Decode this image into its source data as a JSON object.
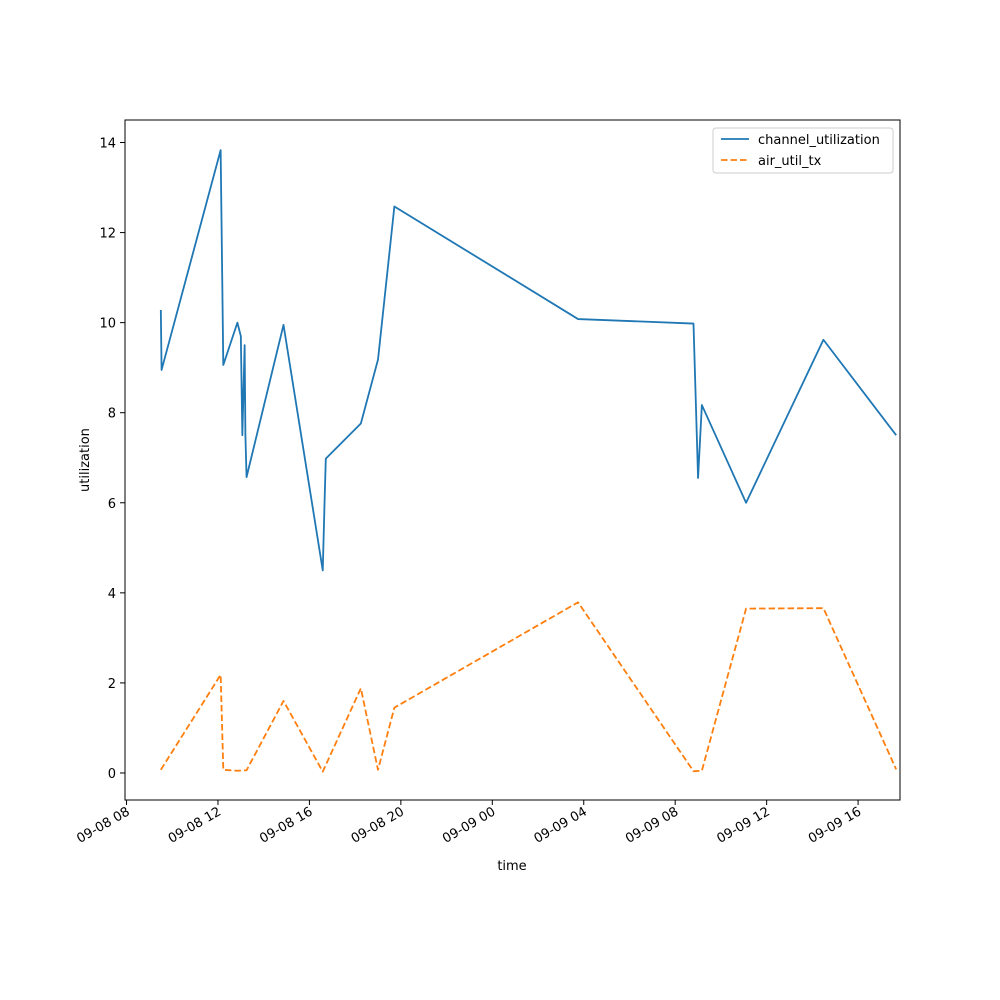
{
  "chart_data": {
    "type": "line",
    "title": "",
    "xlabel": "time",
    "ylabel": "utilization",
    "x_tick_labels": [
      "09-08 08",
      "09-08 12",
      "09-08 16",
      "09-08 20",
      "09-09 00",
      "09-09 04",
      "09-09 08",
      "09-09 12",
      "09-09 16"
    ],
    "x_ticks": [
      "2024-09-08T08:00",
      "2024-09-08T12:00",
      "2024-09-08T16:00",
      "2024-09-08T20:00",
      "2024-09-09T00:00",
      "2024-09-09T04:00",
      "2024-09-09T08:00",
      "2024-09-09T12:00",
      "2024-09-09T16:00"
    ],
    "xlim": [
      "2024-09-08T07:56",
      "2024-09-09T17:50"
    ],
    "y_ticks": [
      0,
      2,
      4,
      6,
      8,
      10,
      12,
      14
    ],
    "ylim": [
      -0.6,
      14.5
    ],
    "grid": false,
    "legend_position": "top-right",
    "series": [
      {
        "name": "channel_utilization",
        "color": "#1f77b4",
        "dash": "solid",
        "points": [
          [
            "2024-09-08T09:30",
            10.28
          ],
          [
            "2024-09-08T09:32",
            8.95
          ],
          [
            "2024-09-08T12:07",
            13.83
          ],
          [
            "2024-09-08T12:14",
            9.06
          ],
          [
            "2024-09-08T12:51",
            10.0
          ],
          [
            "2024-09-08T13:00",
            9.7
          ],
          [
            "2024-09-08T13:04",
            7.5
          ],
          [
            "2024-09-08T13:10",
            9.5
          ],
          [
            "2024-09-08T13:12",
            7.5
          ],
          [
            "2024-09-08T13:15",
            6.57
          ],
          [
            "2024-09-08T14:52",
            9.95
          ],
          [
            "2024-09-08T16:35",
            4.5
          ],
          [
            "2024-09-08T16:40",
            6.1
          ],
          [
            "2024-09-08T16:43",
            6.98
          ],
          [
            "2024-09-08T18:15",
            7.76
          ],
          [
            "2024-09-08T19:00",
            9.18
          ],
          [
            "2024-09-08T19:43",
            12.58
          ],
          [
            "2024-09-09T03:45",
            10.08
          ],
          [
            "2024-09-09T08:48",
            9.98
          ],
          [
            "2024-09-09T09:00",
            6.55
          ],
          [
            "2024-09-09T09:10",
            8.17
          ],
          [
            "2024-09-09T11:06",
            6.0
          ],
          [
            "2024-09-09T14:29",
            9.62
          ],
          [
            "2024-09-09T17:40",
            7.5
          ]
        ]
      },
      {
        "name": "air_util_tx",
        "color": "#ff7f0e",
        "dash": "dashed",
        "points": [
          [
            "2024-09-08T09:30",
            0.07
          ],
          [
            "2024-09-08T12:07",
            2.18
          ],
          [
            "2024-09-08T12:14",
            0.07
          ],
          [
            "2024-09-08T12:51",
            0.05
          ],
          [
            "2024-09-08T13:15",
            0.06
          ],
          [
            "2024-09-08T14:52",
            1.6
          ],
          [
            "2024-09-08T16:35",
            0.03
          ],
          [
            "2024-09-08T18:15",
            1.88
          ],
          [
            "2024-09-08T19:00",
            0.07
          ],
          [
            "2024-09-08T19:43",
            1.45
          ],
          [
            "2024-09-09T03:45",
            3.79
          ],
          [
            "2024-09-09T08:48",
            0.04
          ],
          [
            "2024-09-09T09:10",
            0.05
          ],
          [
            "2024-09-09T11:06",
            3.65
          ],
          [
            "2024-09-09T14:29",
            3.66
          ],
          [
            "2024-09-09T17:40",
            0.08
          ]
        ]
      }
    ]
  }
}
